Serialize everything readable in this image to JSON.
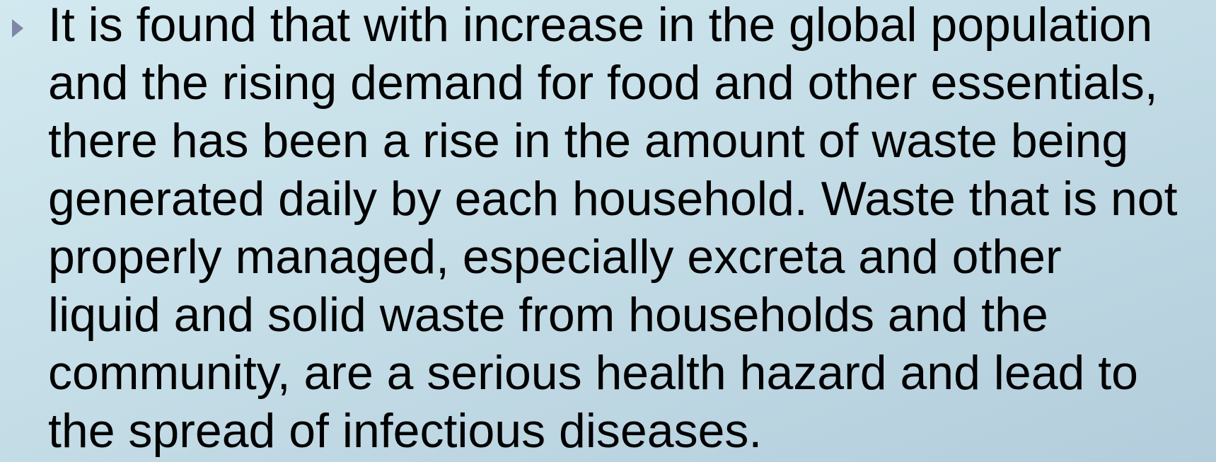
{
  "bullet": {
    "lines": [
      "It is found that with increase in the global population",
      "and the rising demand for food and other essentials,",
      "there has been a rise in the amount of waste being",
      "generated daily by each household. Waste that is not",
      "properly managed, especially excreta and other",
      "liquid and solid waste from households and the",
      "community, are a serious health hazard and lead to",
      "the spread of infectious diseases."
    ]
  }
}
